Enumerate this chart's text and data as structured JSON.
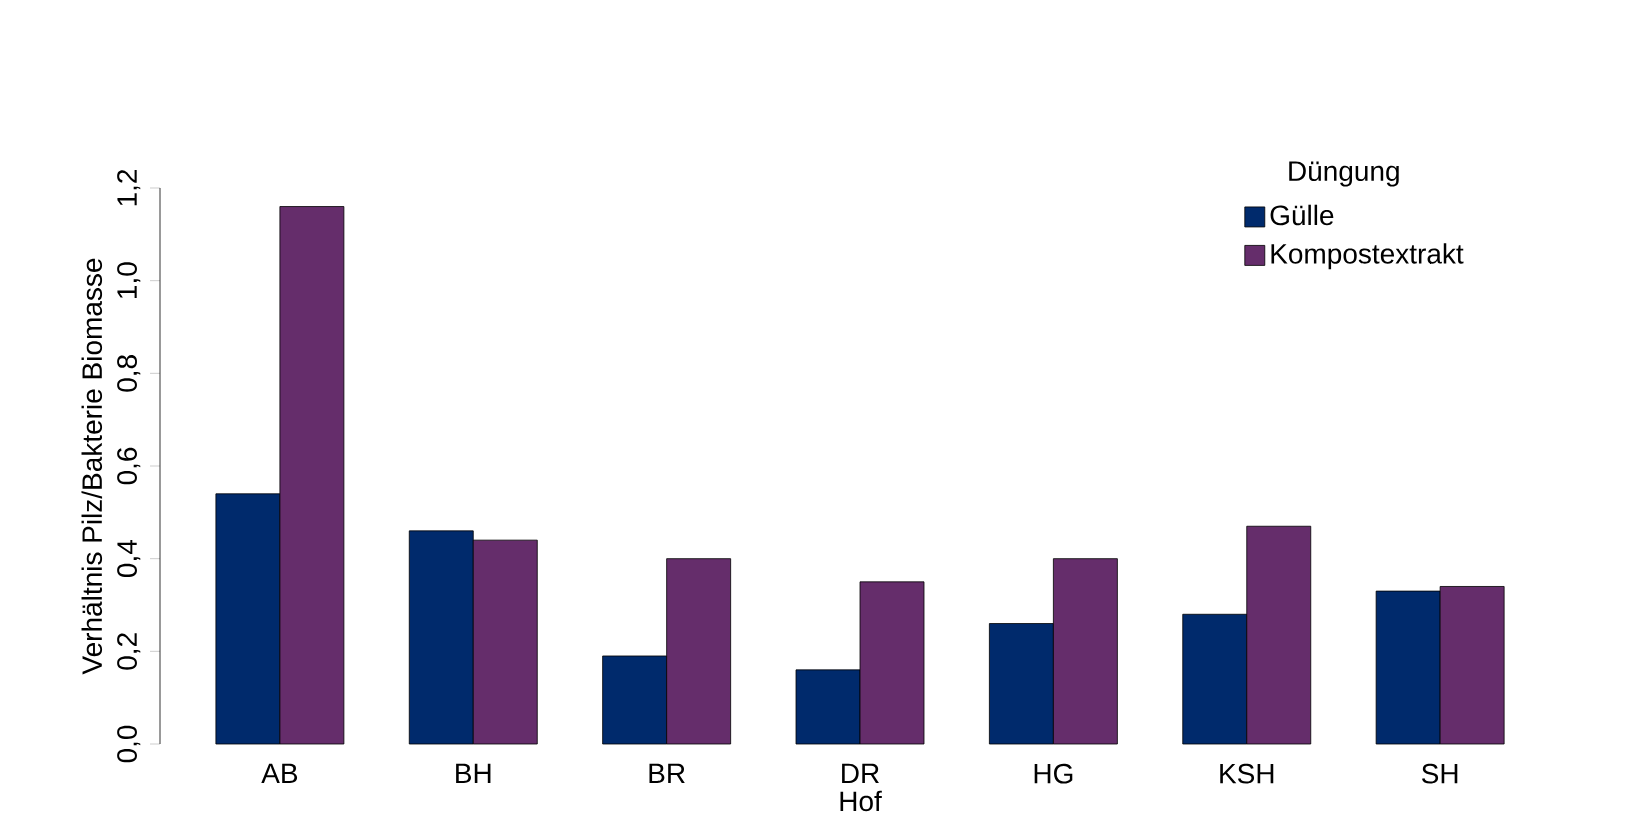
{
  "chart_data": {
    "type": "bar",
    "xlabel": "Hof",
    "ylabel": "Verhältnis Pilz/Bakterie Biomasse",
    "legend_title": "Düngung",
    "legend": "top right",
    "categories": [
      "AB",
      "BH",
      "BR",
      "DR",
      "HG",
      "KSH",
      "SH"
    ],
    "series": [
      {
        "name": "Gülle",
        "color": "#002a6c",
        "values": [
          0.54,
          0.46,
          0.19,
          0.16,
          0.26,
          0.28,
          0.33
        ]
      },
      {
        "name": "Kompostextrakt",
        "color": "#652d6b",
        "values": [
          1.16,
          0.44,
          0.4,
          0.35,
          0.4,
          0.47,
          0.34
        ]
      }
    ],
    "ylim": [
      0,
      1.2
    ],
    "yticks": [
      {
        "value": 0,
        "label": "0,0"
      },
      {
        "value": 0.2,
        "label": "0,2"
      },
      {
        "value": 0.4,
        "label": "0,4"
      },
      {
        "value": 0.6,
        "label": "0,6"
      },
      {
        "value": 0.8,
        "label": "0,8"
      },
      {
        "value": 1.0,
        "label": "1,0"
      },
      {
        "value": 1.2,
        "label": "1,2"
      }
    ]
  }
}
